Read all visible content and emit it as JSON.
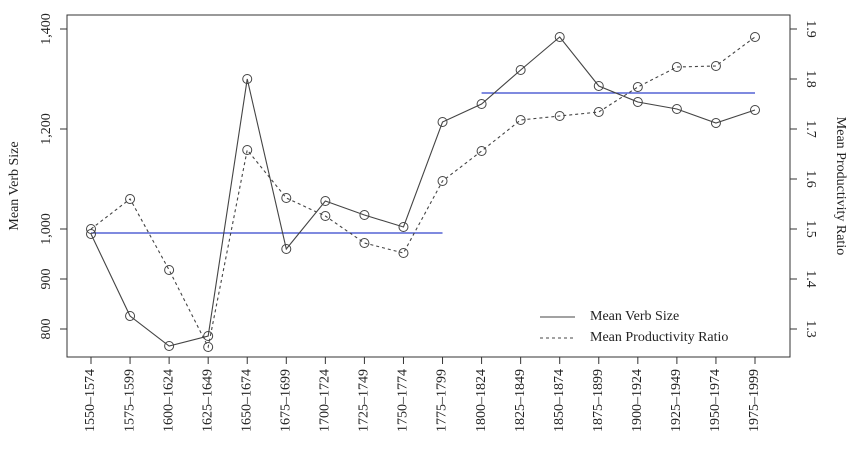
{
  "chart_data": {
    "type": "line",
    "categories": [
      "1550–1574",
      "1575–1599",
      "1600–1624",
      "1625–1649",
      "1650–1674",
      "1675–1699",
      "1700–1724",
      "1725–1749",
      "1750–1774",
      "1775–1799",
      "1800–1824",
      "1825–1849",
      "1850–1874",
      "1875–1899",
      "1900–1924",
      "1925–1949",
      "1950–1974",
      "1975–1999"
    ],
    "y_label": "Mean Verb Size",
    "y2_label": "Mean Productivity Ratio",
    "ylim": [
      744,
      1428
    ],
    "yticks": [
      800,
      900,
      {
        "value": 1000,
        "label": "1,000"
      },
      {
        "value": 1200,
        "label": "1,200"
      },
      {
        "value": 1400,
        "label": "1,400"
      }
    ],
    "y2lim": [
      1.244,
      1.928
    ],
    "y2ticks": [
      1.3,
      1.4,
      1.5,
      1.6,
      1.7,
      1.8,
      1.9
    ],
    "legend": "bottom-right",
    "series": [
      {
        "name": "Mean Verb Size",
        "color": "#444444",
        "dashed": false,
        "values": [
          990,
          826,
          766,
          786,
          1300,
          960,
          1056,
          1028,
          1004,
          1214,
          1250,
          1318,
          1384,
          1286,
          1254,
          1240,
          1212,
          1238
        ]
      },
      {
        "name": "Mean Productivity Ratio",
        "color": "#444444",
        "dashed": true,
        "axis": "y2",
        "values": [
          1.5,
          1.56,
          1.418,
          1.264,
          1.658,
          1.562,
          1.526,
          1.472,
          1.452,
          1.596,
          1.656,
          1.718,
          1.726,
          1.734,
          1.784,
          1.824,
          1.826,
          1.884
        ]
      }
    ],
    "reference_lines": [
      {
        "value": 992,
        "start": "1550–1574",
        "end": "1775–1799",
        "color": "#3344cc"
      },
      {
        "value": 1272,
        "start": "1800–1824",
        "end": "1975–1999",
        "color": "#3344cc"
      }
    ]
  }
}
